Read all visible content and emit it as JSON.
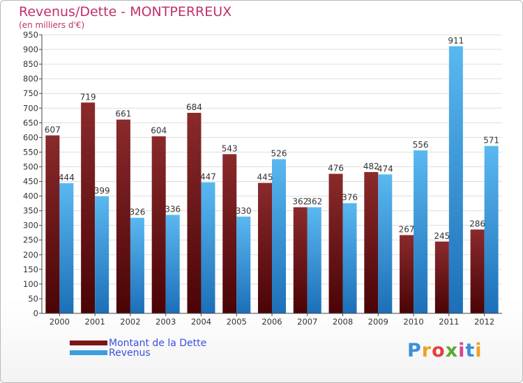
{
  "chart_data": {
    "type": "bar",
    "title": "Revenus/Dette - MONTPERREUX",
    "subtitle": "(en milliers d'€)",
    "categories": [
      "2000",
      "2001",
      "2002",
      "2003",
      "2004",
      "2005",
      "2006",
      "2007",
      "2008",
      "2009",
      "2010",
      "2011",
      "2012"
    ],
    "series": [
      {
        "name": "Montant de la Dette",
        "values": [
          607,
          719,
          661,
          604,
          684,
          543,
          445,
          362,
          476,
          482,
          267,
          245,
          286
        ],
        "color": "#7a1416"
      },
      {
        "name": "Revenus",
        "values": [
          444,
          399,
          326,
          336,
          447,
          330,
          526,
          362,
          376,
          474,
          556,
          911,
          571
        ],
        "color": "#3a9de0"
      }
    ],
    "ylim": [
      0,
      950
    ],
    "yticks": [
      0,
      50,
      100,
      150,
      200,
      250,
      300,
      350,
      400,
      450,
      500,
      550,
      600,
      650,
      700,
      750,
      800,
      850,
      900,
      950
    ],
    "grid": true,
    "legend_position": "bottom-left",
    "colors": {
      "title": "#c0306a",
      "legend_text": "#3a4fe0",
      "grid": "#dddddd"
    }
  },
  "logo": {
    "letters": [
      "P",
      "r",
      "o",
      "x",
      "i",
      "t",
      "i"
    ],
    "colors": [
      "#3a8fd8",
      "#f0a020",
      "#e04040",
      "#5aa830",
      "#e04090",
      "#3a8fd8",
      "#f0a020"
    ]
  }
}
